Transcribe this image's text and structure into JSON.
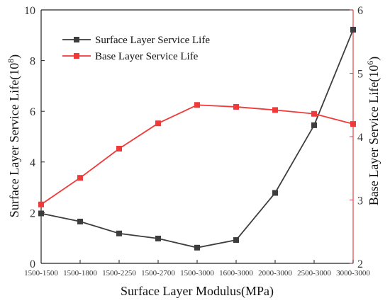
{
  "chart_data": {
    "type": "line",
    "categories": [
      "1500-1500",
      "1500-1800",
      "1500-2250",
      "1500-2700",
      "1500-3000",
      "1600-3000",
      "2000-3000",
      "2500-3000",
      "3000-3000"
    ],
    "xlabel": "Surface Layer Modulus(MPa)",
    "ylabel_left": "Surface Layer Service Life(10",
    "ylabel_left_exp": "8",
    "ylabel_right": "Base Layer Service Life(10",
    "ylabel_right_exp": "6",
    "ylim_left": [
      0,
      10
    ],
    "yticks_left": [
      0,
      2,
      4,
      6,
      8,
      10
    ],
    "ylim_right": [
      2,
      6
    ],
    "yticks_right": [
      2,
      3,
      4,
      5,
      6
    ],
    "grid": false,
    "legend_position": "top-left",
    "series": [
      {
        "name": "Surface Layer Service Life",
        "axis": "left",
        "color": "#3d3d3d",
        "marker": "square",
        "values": [
          1.97,
          1.65,
          1.18,
          0.98,
          0.62,
          0.92,
          2.78,
          5.45,
          9.22
        ]
      },
      {
        "name": "Base Layer Service Life",
        "axis": "right",
        "color": "#f03a3a",
        "marker": "square",
        "values": [
          2.93,
          3.35,
          3.81,
          4.21,
          4.5,
          4.47,
          4.42,
          4.36,
          4.2
        ]
      }
    ],
    "right_axis_color": "#e0454f",
    "left_axis_color": "#222222"
  }
}
